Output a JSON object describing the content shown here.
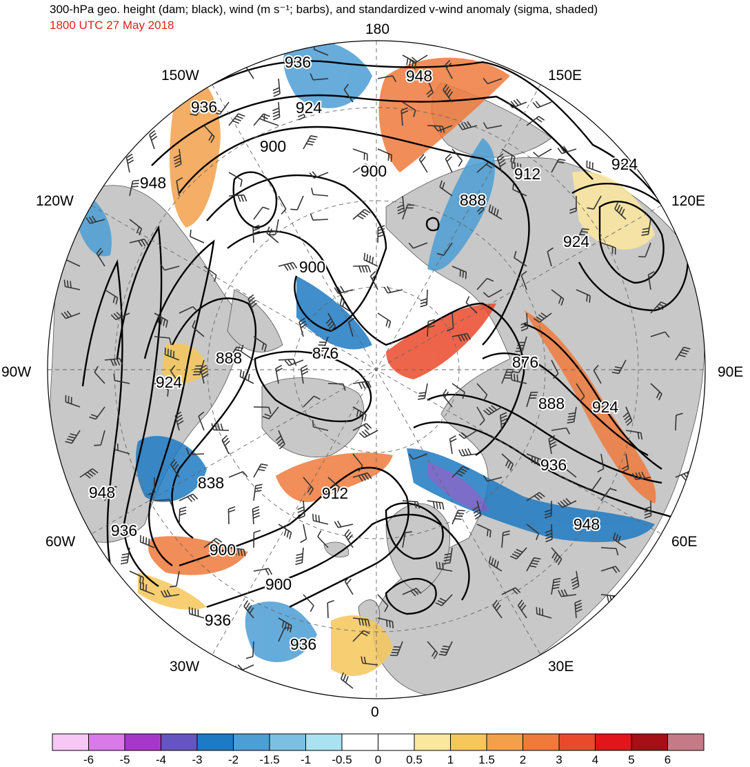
{
  "header": {
    "title": "300-hPa geo. height (dam; black), wind (m s⁻¹; barbs), and standardized v-wind anomaly (sigma, shaded)",
    "valid_time": "1800 UTC 27 May 2018"
  },
  "map": {
    "projection": "north polar stereographic",
    "longitude_labels": {
      "lon_180": "180",
      "lon_150e": "150E",
      "lon_120e": "120E",
      "lon_90e": "90E",
      "lon_60e": "60E",
      "lon_30e": "30E",
      "lon_0": "0",
      "lon_30w": "30W",
      "lon_60w": "60W",
      "lon_90w": "90W",
      "lon_120w": "120W",
      "lon_150w": "150W"
    },
    "contour_labels": [
      "936",
      "948",
      "936",
      "924",
      "900",
      "948",
      "900",
      "888",
      "912",
      "924",
      "924",
      "900",
      "876",
      "876",
      "888",
      "924",
      "888",
      "924",
      "838",
      "900",
      "912",
      "948",
      "936",
      "900",
      "936",
      "948",
      "936",
      "936"
    ],
    "colors": {
      "land": "#c8c8c8",
      "contour": "#000000",
      "barb": "#333333",
      "anomaly_pos": "#f0602e",
      "anomaly_neg": "#3b8fd0"
    }
  },
  "colorbar": {
    "tick_labels": [
      "-6",
      "-5",
      "-4",
      "-3",
      "-2",
      "-1.5",
      "-1",
      "-0.5",
      "0",
      "0.5",
      "1",
      "1.5",
      "2",
      "3",
      "4",
      "5",
      "6"
    ],
    "colors": [
      "#f7c7f5",
      "#d97ae8",
      "#a638c8",
      "#6654c0",
      "#1e7ac2",
      "#4c9ed4",
      "#7bbfe2",
      "#a9e2f0",
      "#ffffff",
      "#ffffff",
      "#fbe79e",
      "#f6c75a",
      "#f3a04a",
      "#ef7a3c",
      "#ea4a2c",
      "#e2141c",
      "#a50f15",
      "#c57b87"
    ]
  }
}
